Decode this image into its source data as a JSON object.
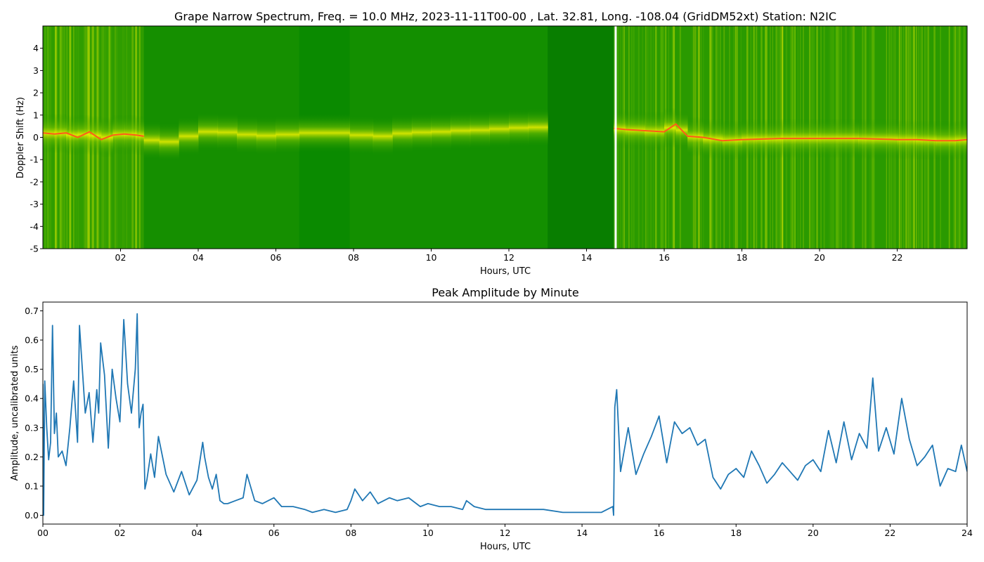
{
  "chart_data": [
    {
      "type": "heatmap",
      "title": "Grape Narrow Spectrum, Freq. = 10.0 MHz, 2023-11-11T00-00 , Lat.  32.81, Long. -108.04 (GridDM52xt) Station: N2IC",
      "xlabel": "Hours, UTC",
      "ylabel": "Doppler Shift (Hz)",
      "xlim": [
        0,
        23.8
      ],
      "ylim": [
        -5,
        5
      ],
      "x_ticks": [
        "02",
        "04",
        "06",
        "08",
        "10",
        "12",
        "14",
        "16",
        "18",
        "20",
        "22"
      ],
      "x_tick_values": [
        2,
        4,
        6,
        8,
        10,
        12,
        14,
        16,
        18,
        20,
        22
      ],
      "y_ticks": [
        "4",
        "3",
        "2",
        "1",
        "0",
        "-1",
        "-2",
        "-3",
        "-4",
        "-5"
      ],
      "y_tick_values": [
        4,
        3,
        2,
        1,
        0,
        -1,
        -2,
        -3,
        -4,
        -5
      ],
      "colors": {
        "background": "#0a8a00",
        "mid": "#7fc600",
        "high": "#f2f200",
        "peak": "#ff5a1a",
        "gap": "#ffffff"
      },
      "doppler_trace": {
        "x": [
          0,
          0.3,
          0.6,
          0.9,
          1.2,
          1.5,
          1.8,
          2.1,
          2.4,
          2.6,
          3.0,
          3.5,
          4.0,
          4.5,
          5.0,
          5.5,
          6.0,
          6.6,
          7.9,
          8.5,
          9.0,
          9.5,
          10.0,
          10.5,
          11.0,
          11.5,
          12.0,
          12.5,
          13.0,
          14.7,
          15.0,
          15.5,
          16.0,
          16.3,
          16.6,
          17.0,
          17.5,
          18.0,
          19.0,
          20.0,
          21.0,
          22.0,
          22.5,
          23.0,
          23.5,
          23.8
        ],
        "y": [
          0.2,
          0.15,
          0.2,
          0.0,
          0.25,
          -0.1,
          0.1,
          0.15,
          0.1,
          0.05,
          -0.3,
          -0.1,
          0.2,
          0.3,
          0.15,
          0.1,
          0.05,
          0.2,
          0.2,
          0.0,
          0.1,
          0.25,
          0.2,
          0.3,
          0.3,
          0.35,
          0.4,
          0.45,
          0.45,
          0.4,
          0.35,
          0.3,
          0.25,
          0.6,
          0.05,
          0.0,
          -0.15,
          -0.1,
          -0.05,
          -0.05,
          -0.05,
          -0.1,
          -0.1,
          -0.15,
          -0.15,
          -0.1
        ]
      },
      "data_gaps": [
        [
          13.0,
          14.7
        ]
      ],
      "vertical_marker_x": 14.75
    },
    {
      "type": "line",
      "title": "Peak Amplitude by Minute",
      "xlabel": "Hours, UTC",
      "ylabel": "Amplitude, uncalibrated units",
      "xlim": [
        0,
        24
      ],
      "ylim": [
        -0.03,
        0.73
      ],
      "x_ticks": [
        "00",
        "02",
        "04",
        "06",
        "08",
        "10",
        "12",
        "14",
        "16",
        "18",
        "20",
        "22",
        "24"
      ],
      "x_tick_values": [
        0,
        2,
        4,
        6,
        8,
        10,
        12,
        14,
        16,
        18,
        20,
        22,
        24
      ],
      "y_ticks": [
        "0.0",
        "0.1",
        "0.2",
        "0.3",
        "0.4",
        "0.5",
        "0.6",
        "0.7"
      ],
      "y_tick_values": [
        0.0,
        0.1,
        0.2,
        0.3,
        0.4,
        0.5,
        0.6,
        0.7
      ],
      "line_color": "#1f77b4",
      "series": [
        {
          "x": [
            0,
            0.02,
            0.05,
            0.1,
            0.15,
            0.2,
            0.25,
            0.3,
            0.35,
            0.4,
            0.5,
            0.6,
            0.7,
            0.8,
            0.9,
            0.95,
            1.0,
            1.1,
            1.2,
            1.3,
            1.4,
            1.45,
            1.5,
            1.6,
            1.7,
            1.8,
            1.9,
            2.0,
            2.05,
            2.1,
            2.2,
            2.3,
            2.4,
            2.45,
            2.5,
            2.55,
            2.6,
            2.65,
            2.7,
            2.8,
            2.9,
            3.0,
            3.2,
            3.4,
            3.6,
            3.8,
            4.0,
            4.15,
            4.2,
            4.3,
            4.4,
            4.5,
            4.6,
            4.7,
            4.8,
            5.0,
            5.2,
            5.3,
            5.5,
            5.7,
            6.0,
            6.2,
            6.5,
            6.8,
            7.0,
            7.3,
            7.6,
            7.9,
            8.0,
            8.1,
            8.3,
            8.5,
            8.7,
            9.0,
            9.2,
            9.5,
            9.8,
            10.0,
            10.3,
            10.6,
            10.9,
            11.0,
            11.2,
            11.5,
            12.0,
            12.5,
            13.0,
            13.5,
            14.0,
            14.5,
            14.8,
            14.82,
            14.85,
            14.9,
            15.0,
            15.2,
            15.4,
            15.6,
            15.8,
            16.0,
            16.2,
            16.4,
            16.6,
            16.8,
            17.0,
            17.2,
            17.4,
            17.6,
            17.8,
            18.0,
            18.2,
            18.4,
            18.6,
            18.8,
            19.0,
            19.2,
            19.4,
            19.6,
            19.8,
            20.0,
            20.2,
            20.4,
            20.6,
            20.8,
            21.0,
            21.2,
            21.4,
            21.55,
            21.7,
            21.9,
            22.1,
            22.3,
            22.5,
            22.7,
            22.9,
            23.1,
            23.3,
            23.5,
            23.7,
            23.85,
            24.0
          ],
          "values": [
            0.45,
            0.0,
            0.46,
            0.3,
            0.19,
            0.25,
            0.65,
            0.28,
            0.35,
            0.2,
            0.22,
            0.17,
            0.3,
            0.46,
            0.25,
            0.65,
            0.55,
            0.35,
            0.42,
            0.25,
            0.43,
            0.35,
            0.59,
            0.48,
            0.23,
            0.5,
            0.4,
            0.32,
            0.48,
            0.67,
            0.45,
            0.35,
            0.5,
            0.69,
            0.3,
            0.35,
            0.38,
            0.09,
            0.12,
            0.21,
            0.13,
            0.27,
            0.14,
            0.08,
            0.15,
            0.07,
            0.12,
            0.25,
            0.2,
            0.13,
            0.09,
            0.14,
            0.05,
            0.04,
            0.04,
            0.05,
            0.06,
            0.14,
            0.05,
            0.04,
            0.06,
            0.03,
            0.03,
            0.02,
            0.01,
            0.02,
            0.01,
            0.02,
            0.05,
            0.09,
            0.05,
            0.08,
            0.04,
            0.06,
            0.05,
            0.06,
            0.03,
            0.04,
            0.03,
            0.03,
            0.02,
            0.05,
            0.03,
            0.02,
            0.02,
            0.02,
            0.02,
            0.01,
            0.01,
            0.01,
            0.03,
            0.0,
            0.37,
            0.43,
            0.15,
            0.3,
            0.14,
            0.21,
            0.27,
            0.34,
            0.18,
            0.32,
            0.28,
            0.3,
            0.24,
            0.26,
            0.13,
            0.09,
            0.14,
            0.16,
            0.13,
            0.22,
            0.17,
            0.11,
            0.14,
            0.18,
            0.15,
            0.12,
            0.17,
            0.19,
            0.15,
            0.29,
            0.18,
            0.32,
            0.19,
            0.28,
            0.23,
            0.47,
            0.22,
            0.3,
            0.21,
            0.4,
            0.26,
            0.17,
            0.2,
            0.24,
            0.1,
            0.16,
            0.15,
            0.24,
            0.15
          ]
        }
      ]
    }
  ]
}
